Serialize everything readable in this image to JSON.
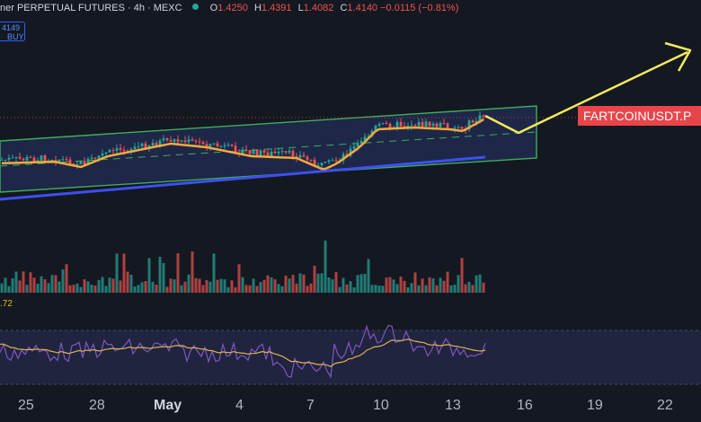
{
  "header": {
    "symbol": "ner PERPETUAL FUTURES · 4h · MEXC",
    "open_key": "O",
    "open": "1.4250",
    "high_key": "H",
    "high": "1.4391",
    "low_key": "L",
    "low": "1.4082",
    "close_key": "C",
    "close": "1.4140",
    "change": "−0.0115 (−0.81%)"
  },
  "buy_box": {
    "price": "4149",
    "label": "BUY"
  },
  "volume_label": ".72",
  "price_tag": "FARTCOINUSDT.P",
  "x_axis": [
    "25",
    "28",
    "May",
    "4",
    "7",
    "10",
    "13",
    "16",
    "19",
    "22"
  ],
  "colors": {
    "background": "#141821",
    "up": "#26a69a",
    "down": "#ef5350",
    "channel": "#3fae5a",
    "ema": "#f6a93b",
    "support": "#3d4ff0",
    "rsi": "#7e57c2",
    "rsi_ma": "#e0b34a",
    "arrow": "#f2ea5e",
    "tag": "#e8454b"
  }
}
